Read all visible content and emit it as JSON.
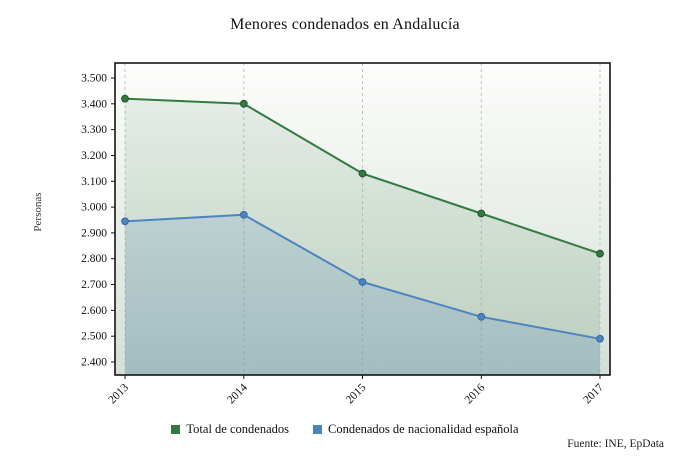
{
  "chart_data": {
    "type": "line",
    "title": "Menores condenados en Andalucía",
    "ylabel": "Personas",
    "source": "Fuente: INE, EpData",
    "x": [
      "2013",
      "2014",
      "2015",
      "2016",
      "2017"
    ],
    "series": [
      {
        "name": "Total de condenados",
        "color": "#327a40",
        "marker_stroke": "#20542c",
        "values": [
          3420,
          3400,
          3130,
          2975,
          2820
        ]
      },
      {
        "name": "Condenados de nacionalidad española",
        "color": "#4d84c0",
        "marker_stroke": "#36699f",
        "values": [
          2945,
          2970,
          2710,
          2575,
          2490
        ]
      }
    ],
    "ylim": [
      2400,
      3500
    ],
    "ytick_step": 100,
    "ytick_labels": [
      "2.400",
      "2.500",
      "2.600",
      "2.700",
      "2.800",
      "2.900",
      "3.000",
      "3.100",
      "3.200",
      "3.300",
      "3.400",
      "3.500"
    ],
    "grid": "vertical-dashed",
    "legend_position": "bottom"
  }
}
